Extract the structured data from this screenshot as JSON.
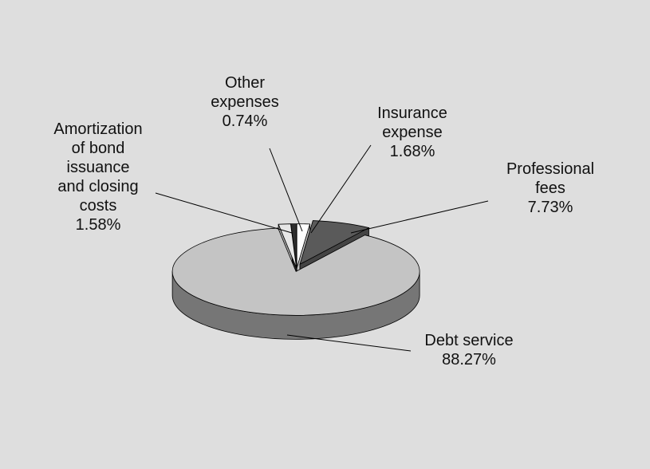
{
  "chart_data": {
    "type": "pie3d",
    "categories": [
      "Insurance expense",
      "Professional fees",
      "Debt service",
      "Amortization of bond issuance and closing costs",
      "Other expenses"
    ],
    "values": [
      1.68,
      7.73,
      88.27,
      1.58,
      0.74
    ],
    "value_labels": [
      "1.68%",
      "7.73%",
      "88.27%",
      "1.58%",
      "0.74%"
    ],
    "colors": [
      "#ffffff",
      "#5a5a5a",
      "#c4c4c4",
      "#e6e6e6",
      "#2e2e2e"
    ]
  }
}
